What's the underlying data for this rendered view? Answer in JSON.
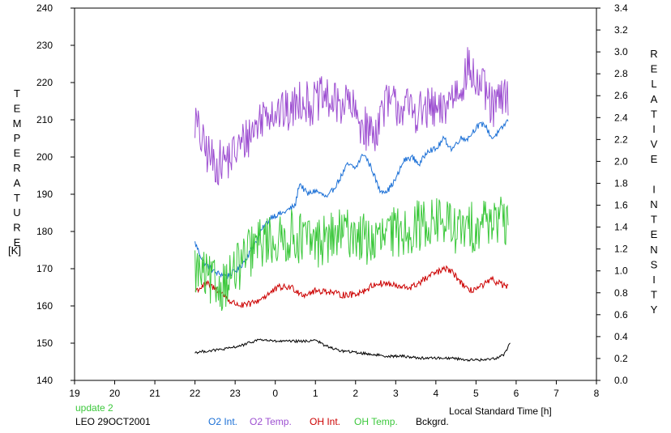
{
  "chart_data": {
    "type": "line",
    "y_left_label": "TEMPERATURE",
    "y_left_unit": "[K]",
    "y_right_label": "RELATIVE INTENSITY",
    "xlabel": "Local Standard Time [h]",
    "x_ticks": [
      "19",
      "20",
      "21",
      "22",
      "23",
      "0",
      "1",
      "2",
      "3",
      "4",
      "5",
      "6",
      "7",
      "8"
    ],
    "x_range": [
      19,
      32
    ],
    "y_left_ticks": [
      "140",
      "150",
      "160",
      "170",
      "180",
      "190",
      "200",
      "210",
      "220",
      "230",
      "240"
    ],
    "y_left_range": [
      140,
      240
    ],
    "y_right_ticks": [
      "0.0",
      "0.2",
      "0.4",
      "0.6",
      "0.8",
      "1.0",
      "1.2",
      "1.4",
      "1.6",
      "1.8",
      "2.0",
      "2.2",
      "2.4",
      "2.6",
      "2.8",
      "3.0",
      "3.2",
      "3.4"
    ],
    "y_right_range": [
      0.0,
      3.4
    ],
    "grid": false,
    "update_text": "update 2",
    "station_text": "LEO 29OCT2001",
    "series": [
      {
        "name": "O2 Int.",
        "axis": "left",
        "color": "#1a6fd6",
        "noise": 0.8,
        "points": [
          [
            22.0,
            177
          ],
          [
            22.2,
            172
          ],
          [
            22.5,
            169
          ],
          [
            22.8,
            168
          ],
          [
            23.1,
            170
          ],
          [
            23.4,
            175
          ],
          [
            23.7,
            181
          ],
          [
            23.9,
            184
          ],
          [
            24.2,
            185
          ],
          [
            24.5,
            187
          ],
          [
            24.6,
            193
          ],
          [
            24.8,
            190
          ],
          [
            25.0,
            191
          ],
          [
            25.3,
            189
          ],
          [
            25.6,
            194
          ],
          [
            25.8,
            198
          ],
          [
            26.0,
            197
          ],
          [
            26.2,
            201
          ],
          [
            26.4,
            197
          ],
          [
            26.6,
            191
          ],
          [
            26.8,
            191
          ],
          [
            27.0,
            194
          ],
          [
            27.2,
            199
          ],
          [
            27.4,
            200
          ],
          [
            27.6,
            198
          ],
          [
            27.8,
            202
          ],
          [
            28.0,
            202
          ],
          [
            28.2,
            205
          ],
          [
            28.4,
            202
          ],
          [
            28.6,
            205
          ],
          [
            28.8,
            205
          ],
          [
            29.0,
            208
          ],
          [
            29.2,
            209
          ],
          [
            29.4,
            205
          ],
          [
            29.6,
            207
          ],
          [
            29.8,
            210
          ]
        ]
      },
      {
        "name": "O2 Temp.",
        "axis": "left",
        "color": "#9d4fd1",
        "noise": 6,
        "points": [
          [
            22.0,
            210
          ],
          [
            22.2,
            203
          ],
          [
            22.5,
            198
          ],
          [
            22.9,
            200
          ],
          [
            23.2,
            204
          ],
          [
            23.5,
            208
          ],
          [
            23.8,
            213
          ],
          [
            24.1,
            212
          ],
          [
            24.4,
            212
          ],
          [
            24.6,
            216
          ],
          [
            24.9,
            214
          ],
          [
            25.2,
            216
          ],
          [
            25.5,
            214
          ],
          [
            25.8,
            215
          ],
          [
            26.0,
            211
          ],
          [
            26.3,
            207
          ],
          [
            26.5,
            207
          ],
          [
            26.7,
            214
          ],
          [
            27.0,
            214
          ],
          [
            27.3,
            213
          ],
          [
            27.6,
            212
          ],
          [
            27.9,
            213
          ],
          [
            28.1,
            211
          ],
          [
            28.3,
            215
          ],
          [
            28.6,
            219
          ],
          [
            28.8,
            224
          ],
          [
            29.0,
            220
          ],
          [
            29.2,
            218
          ],
          [
            29.4,
            213
          ],
          [
            29.6,
            215
          ],
          [
            29.8,
            217
          ]
        ]
      },
      {
        "name": "OH Int.",
        "axis": "left",
        "color": "#cc0000",
        "noise": 0.9,
        "points": [
          [
            22.0,
            164
          ],
          [
            22.3,
            166
          ],
          [
            22.6,
            164
          ],
          [
            22.9,
            161
          ],
          [
            23.2,
            160
          ],
          [
            23.5,
            161
          ],
          [
            23.8,
            163
          ],
          [
            24.1,
            165
          ],
          [
            24.4,
            165
          ],
          [
            24.7,
            163
          ],
          [
            25.0,
            164
          ],
          [
            25.3,
            164
          ],
          [
            25.6,
            163
          ],
          [
            25.9,
            163
          ],
          [
            26.2,
            164
          ],
          [
            26.5,
            166
          ],
          [
            26.8,
            166
          ],
          [
            27.1,
            165
          ],
          [
            27.4,
            165
          ],
          [
            27.7,
            167
          ],
          [
            28.0,
            169
          ],
          [
            28.3,
            170
          ],
          [
            28.5,
            168
          ],
          [
            28.8,
            164
          ],
          [
            29.1,
            165
          ],
          [
            29.4,
            167
          ],
          [
            29.6,
            166
          ],
          [
            29.8,
            165
          ]
        ]
      },
      {
        "name": "OH Temp.",
        "axis": "left",
        "color": "#3cc83c",
        "noise": 7,
        "points": [
          [
            22.0,
            170
          ],
          [
            22.3,
            167
          ],
          [
            22.6,
            165
          ],
          [
            22.9,
            168
          ],
          [
            23.2,
            172
          ],
          [
            23.5,
            176
          ],
          [
            23.8,
            178
          ],
          [
            24.1,
            177
          ],
          [
            24.4,
            179
          ],
          [
            24.7,
            178
          ],
          [
            25.0,
            177
          ],
          [
            25.3,
            178
          ],
          [
            25.6,
            179
          ],
          [
            25.9,
            180
          ],
          [
            26.2,
            178
          ],
          [
            26.5,
            177
          ],
          [
            26.8,
            179
          ],
          [
            27.1,
            180
          ],
          [
            27.4,
            181
          ],
          [
            27.7,
            182
          ],
          [
            28.0,
            183
          ],
          [
            28.3,
            182
          ],
          [
            28.6,
            180
          ],
          [
            28.9,
            181
          ],
          [
            29.2,
            183
          ],
          [
            29.5,
            184
          ],
          [
            29.8,
            180
          ]
        ]
      },
      {
        "name": "Bckgrd.",
        "axis": "left",
        "color": "#000000",
        "noise": 0.35,
        "points": [
          [
            22.0,
            147.5
          ],
          [
            22.4,
            148
          ],
          [
            22.8,
            148.5
          ],
          [
            23.2,
            149.5
          ],
          [
            23.6,
            151
          ],
          [
            24.0,
            150.5
          ],
          [
            24.4,
            150.5
          ],
          [
            24.8,
            150.5
          ],
          [
            25.0,
            151
          ],
          [
            25.2,
            149.5
          ],
          [
            25.6,
            148
          ],
          [
            26.0,
            147.5
          ],
          [
            26.4,
            147
          ],
          [
            26.8,
            146.5
          ],
          [
            27.2,
            146.5
          ],
          [
            27.6,
            146
          ],
          [
            28.0,
            146
          ],
          [
            28.4,
            146
          ],
          [
            28.8,
            145.5
          ],
          [
            29.2,
            145.5
          ],
          [
            29.5,
            146
          ],
          [
            29.7,
            147
          ],
          [
            29.85,
            150
          ]
        ]
      }
    ]
  }
}
